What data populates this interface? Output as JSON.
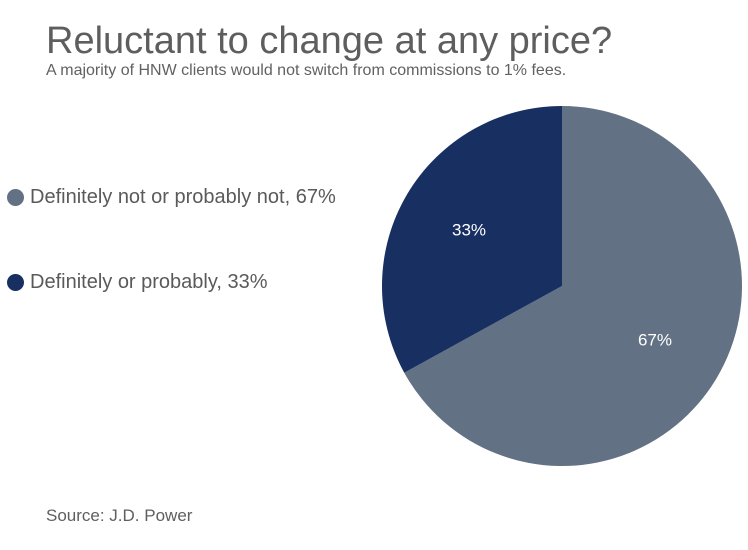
{
  "chart_data": {
    "type": "pie",
    "title": "Reluctant to change at any price?",
    "subtitle": "A majority of HNW clients would not switch from commissions to 1% fees.",
    "source": "Source: J.D. Power",
    "slices": [
      {
        "name": "Definitely not or probably not",
        "value": 67,
        "label": "67%",
        "legend_label": "Definitely not or probably not, 67%",
        "color": "#627184"
      },
      {
        "name": "Definitely or probably",
        "value": 33,
        "label": "33%",
        "legend_label": "Definitely or probably, 33%",
        "color": "#182f61"
      }
    ],
    "legend_position": "left",
    "start_angle": "top",
    "direction": "clockwise"
  }
}
